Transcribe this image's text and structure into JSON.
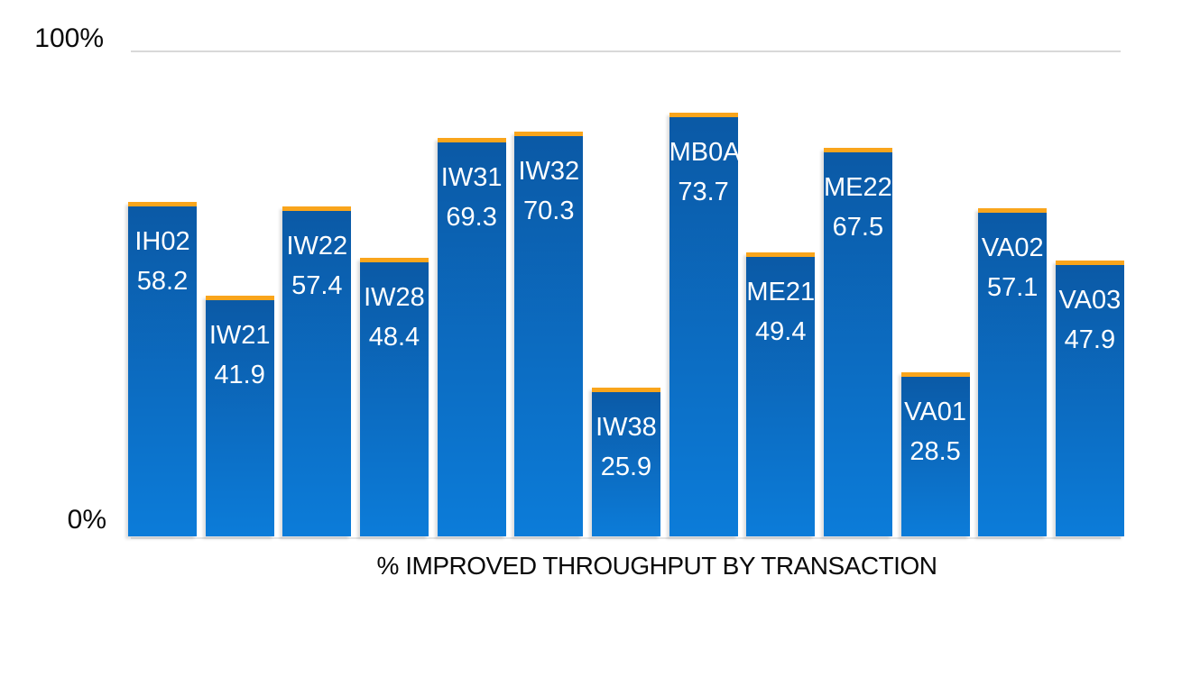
{
  "chart_data": {
    "type": "bar",
    "title": "% IMPROVED THROUGHPUT BY TRANSACTION",
    "title_position": "bottom",
    "categories": [
      "IH02",
      "IW21",
      "IW22",
      "IW28",
      "IW31",
      "IW32",
      "IW38",
      "MB0A",
      "ME21",
      "ME22",
      "VA01",
      "VA02",
      "VA03"
    ],
    "values": [
      58.2,
      41.9,
      57.4,
      48.4,
      69.3,
      70.3,
      25.9,
      73.7,
      49.4,
      67.5,
      28.5,
      57.1,
      47.9
    ],
    "xlabel": "",
    "ylabel": "",
    "ylim": [
      0,
      100
    ],
    "yticks": [
      {
        "label": "100%",
        "value": 100
      },
      {
        "label": "0%",
        "value": 0
      }
    ],
    "grid": "horizontal gridlines at 0% and 100% only",
    "legend": "none",
    "bar_labels": "category code and value shown in white inside the top of each bar",
    "colors": {
      "bar_gradient_top": "#0B59A5",
      "bar_gradient_bottom": "#0C7CD9",
      "bar_cap": "#F9A51C",
      "gridline": "#D9D9D9",
      "bar_label_text": "#FFFFFF",
      "axis_text": "#0A0A0A"
    }
  }
}
